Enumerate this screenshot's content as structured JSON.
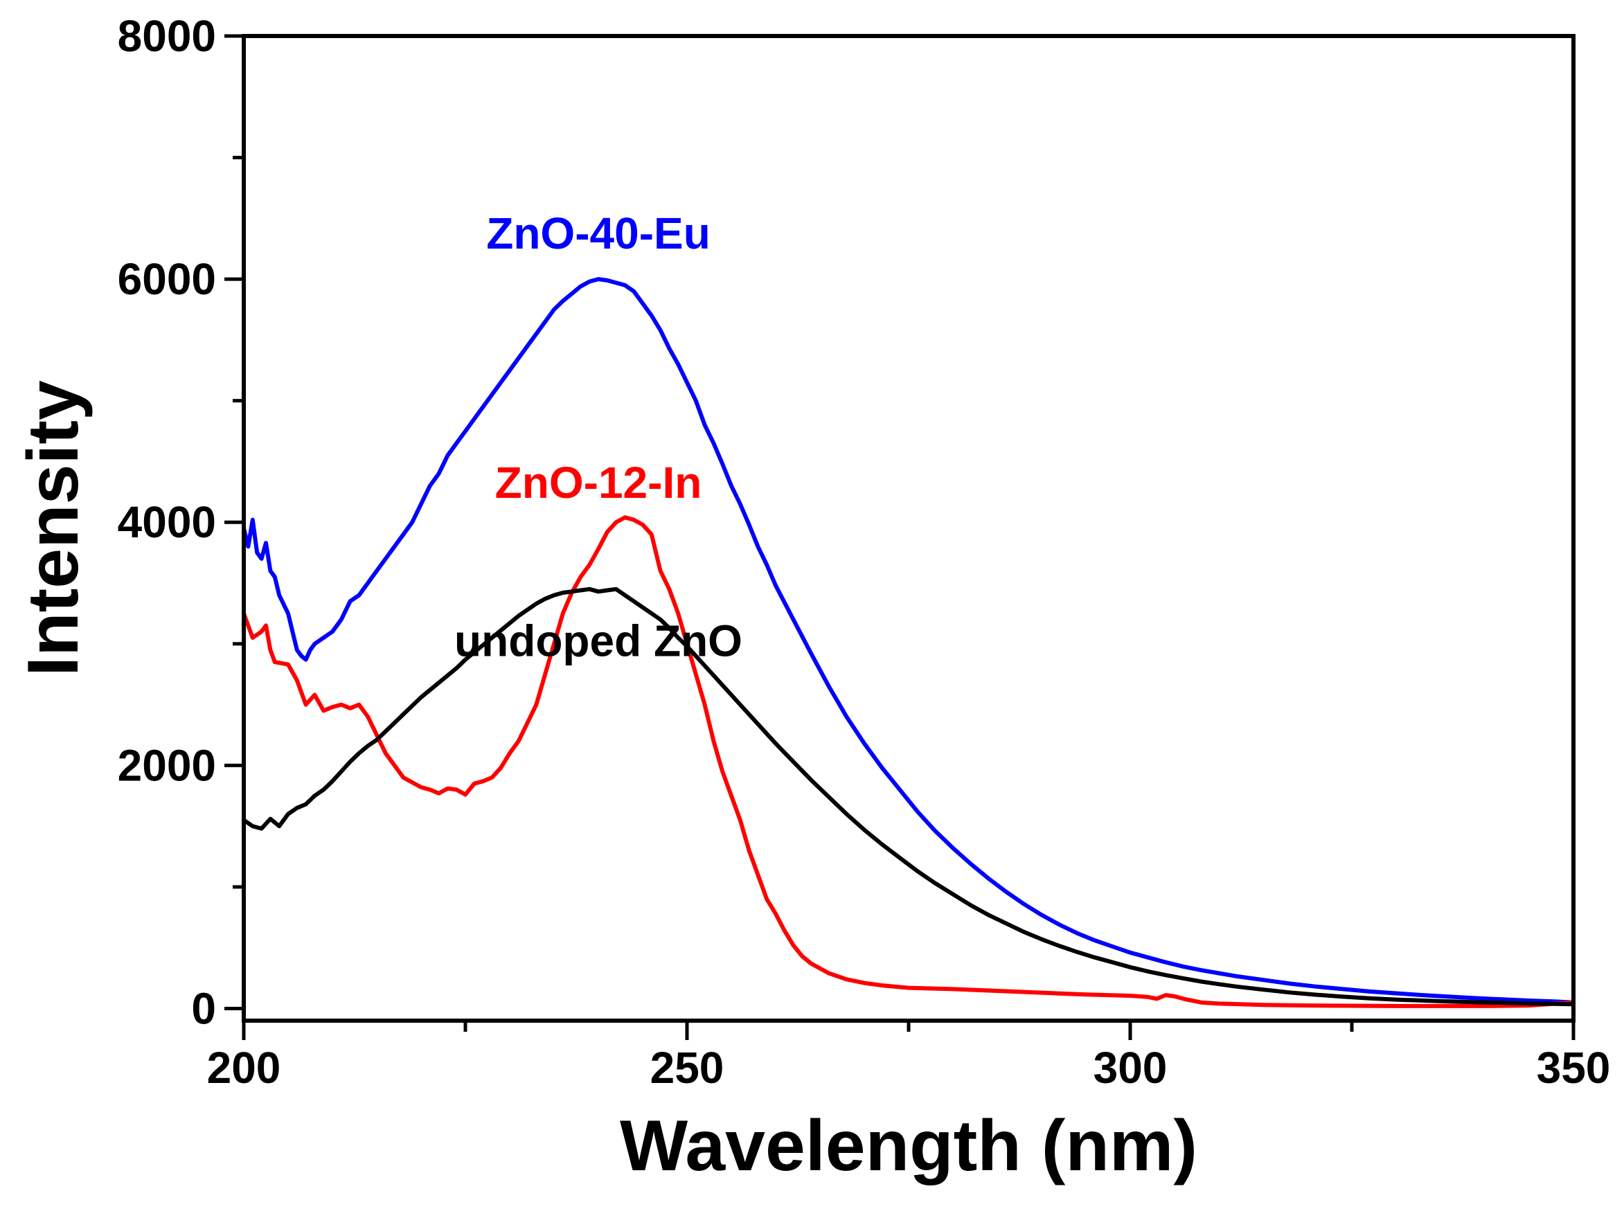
{
  "chart_data": {
    "type": "line",
    "title": "",
    "xlabel": "Wavelength (nm)",
    "ylabel": "Intensity",
    "xlim": [
      200,
      350
    ],
    "ylim": [
      -100,
      8000
    ],
    "xticks": [
      200,
      250,
      300,
      350
    ],
    "yticks": [
      0,
      2000,
      4000,
      6000,
      8000
    ],
    "x_minor_step": 25,
    "y_minor_step": 1000,
    "grid": false,
    "legend": "inline labels",
    "series": [
      {
        "name": "ZnO-40-Eu",
        "color": "#0000ff",
        "label_anchor": [
          240,
          6250
        ],
        "points": [
          [
            200,
            3950
          ],
          [
            200.5,
            3800
          ],
          [
            201,
            4020
          ],
          [
            201.5,
            3750
          ],
          [
            202,
            3700
          ],
          [
            202.5,
            3830
          ],
          [
            203,
            3600
          ],
          [
            203.5,
            3550
          ],
          [
            204,
            3400
          ],
          [
            205,
            3250
          ],
          [
            206,
            2950
          ],
          [
            206.5,
            2900
          ],
          [
            207,
            2870
          ],
          [
            207.5,
            2950
          ],
          [
            208,
            3000
          ],
          [
            209,
            3050
          ],
          [
            210,
            3100
          ],
          [
            211,
            3200
          ],
          [
            212,
            3350
          ],
          [
            213,
            3400
          ],
          [
            214,
            3500
          ],
          [
            215,
            3600
          ],
          [
            216,
            3700
          ],
          [
            217,
            3800
          ],
          [
            218,
            3900
          ],
          [
            219,
            4000
          ],
          [
            220,
            4150
          ],
          [
            221,
            4300
          ],
          [
            222,
            4400
          ],
          [
            223,
            4550
          ],
          [
            224,
            4650
          ],
          [
            225,
            4750
          ],
          [
            226,
            4850
          ],
          [
            227,
            4950
          ],
          [
            228,
            5050
          ],
          [
            229,
            5150
          ],
          [
            230,
            5250
          ],
          [
            231,
            5350
          ],
          [
            232,
            5450
          ],
          [
            233,
            5550
          ],
          [
            234,
            5650
          ],
          [
            235,
            5750
          ],
          [
            236,
            5820
          ],
          [
            237,
            5880
          ],
          [
            238,
            5940
          ],
          [
            239,
            5980
          ],
          [
            240,
            6000
          ],
          [
            241,
            5990
          ],
          [
            242,
            5970
          ],
          [
            243,
            5950
          ],
          [
            244,
            5900
          ],
          [
            245,
            5800
          ],
          [
            246,
            5700
          ],
          [
            247,
            5580
          ],
          [
            248,
            5430
          ],
          [
            249,
            5300
          ],
          [
            250,
            5150
          ],
          [
            251,
            5000
          ],
          [
            252,
            4800
          ],
          [
            253,
            4650
          ],
          [
            254,
            4480
          ],
          [
            255,
            4300
          ],
          [
            256,
            4150
          ],
          [
            257,
            3980
          ],
          [
            258,
            3800
          ],
          [
            259,
            3650
          ],
          [
            260,
            3480
          ],
          [
            262,
            3200
          ],
          [
            264,
            2920
          ],
          [
            266,
            2650
          ],
          [
            268,
            2400
          ],
          [
            270,
            2180
          ],
          [
            272,
            1980
          ],
          [
            274,
            1800
          ],
          [
            276,
            1620
          ],
          [
            278,
            1460
          ],
          [
            280,
            1320
          ],
          [
            282,
            1190
          ],
          [
            284,
            1070
          ],
          [
            286,
            960
          ],
          [
            288,
            860
          ],
          [
            290,
            770
          ],
          [
            292,
            690
          ],
          [
            294,
            620
          ],
          [
            296,
            560
          ],
          [
            298,
            510
          ],
          [
            300,
            460
          ],
          [
            302,
            420
          ],
          [
            304,
            380
          ],
          [
            306,
            345
          ],
          [
            308,
            315
          ],
          [
            310,
            290
          ],
          [
            312,
            265
          ],
          [
            315,
            235
          ],
          [
            318,
            205
          ],
          [
            321,
            180
          ],
          [
            324,
            160
          ],
          [
            327,
            140
          ],
          [
            330,
            125
          ],
          [
            333,
            110
          ],
          [
            336,
            97
          ],
          [
            339,
            85
          ],
          [
            342,
            75
          ],
          [
            345,
            65
          ],
          [
            348,
            57
          ],
          [
            350,
            50
          ]
        ]
      },
      {
        "name": "ZnO-12-In",
        "color": "#ff0000",
        "label_anchor": [
          240,
          4200
        ],
        "points": [
          [
            200,
            3250
          ],
          [
            200.5,
            3150
          ],
          [
            201,
            3050
          ],
          [
            202,
            3100
          ],
          [
            202.5,
            3150
          ],
          [
            203,
            2950
          ],
          [
            203.5,
            2850
          ],
          [
            205,
            2830
          ],
          [
            206,
            2700
          ],
          [
            207,
            2500
          ],
          [
            208,
            2580
          ],
          [
            209,
            2450
          ],
          [
            210,
            2480
          ],
          [
            211,
            2500
          ],
          [
            212,
            2470
          ],
          [
            213,
            2500
          ],
          [
            214,
            2400
          ],
          [
            215,
            2250
          ],
          [
            216,
            2100
          ],
          [
            217,
            2000
          ],
          [
            218,
            1900
          ],
          [
            219,
            1860
          ],
          [
            220,
            1820
          ],
          [
            221,
            1800
          ],
          [
            222,
            1770
          ],
          [
            223,
            1810
          ],
          [
            224,
            1800
          ],
          [
            225,
            1760
          ],
          [
            226,
            1850
          ],
          [
            227,
            1870
          ],
          [
            228,
            1900
          ],
          [
            229,
            1980
          ],
          [
            230,
            2100
          ],
          [
            231,
            2200
          ],
          [
            232,
            2350
          ],
          [
            233,
            2500
          ],
          [
            234,
            2750
          ],
          [
            235,
            3000
          ],
          [
            236,
            3250
          ],
          [
            237,
            3420
          ],
          [
            238,
            3550
          ],
          [
            239,
            3650
          ],
          [
            240,
            3780
          ],
          [
            241,
            3920
          ],
          [
            242,
            4000
          ],
          [
            243,
            4040
          ],
          [
            244,
            4020
          ],
          [
            245,
            3980
          ],
          [
            246,
            3900
          ],
          [
            247,
            3600
          ],
          [
            248,
            3450
          ],
          [
            249,
            3250
          ],
          [
            250,
            3000
          ],
          [
            251,
            2750
          ],
          [
            252,
            2500
          ],
          [
            253,
            2200
          ],
          [
            254,
            1950
          ],
          [
            255,
            1750
          ],
          [
            256,
            1550
          ],
          [
            257,
            1300
          ],
          [
            258,
            1100
          ],
          [
            259,
            900
          ],
          [
            260,
            780
          ],
          [
            261,
            640
          ],
          [
            262,
            520
          ],
          [
            263,
            430
          ],
          [
            264,
            370
          ],
          [
            266,
            290
          ],
          [
            268,
            240
          ],
          [
            270,
            210
          ],
          [
            272,
            190
          ],
          [
            275,
            170
          ],
          [
            280,
            160
          ],
          [
            285,
            145
          ],
          [
            290,
            130
          ],
          [
            295,
            115
          ],
          [
            300,
            105
          ],
          [
            302,
            95
          ],
          [
            303,
            80
          ],
          [
            304,
            110
          ],
          [
            305,
            100
          ],
          [
            306,
            80
          ],
          [
            308,
            50
          ],
          [
            310,
            40
          ],
          [
            315,
            30
          ],
          [
            320,
            25
          ],
          [
            330,
            20
          ],
          [
            340,
            20
          ],
          [
            345,
            25
          ],
          [
            348,
            40
          ],
          [
            350,
            50
          ]
        ]
      },
      {
        "name": "undoped ZnO",
        "color": "#000000",
        "label_anchor": [
          240,
          2900
        ],
        "points": [
          [
            200,
            1550
          ],
          [
            201,
            1500
          ],
          [
            202,
            1480
          ],
          [
            203,
            1560
          ],
          [
            204,
            1500
          ],
          [
            205,
            1600
          ],
          [
            206,
            1650
          ],
          [
            207,
            1680
          ],
          [
            208,
            1750
          ],
          [
            209,
            1800
          ],
          [
            210,
            1870
          ],
          [
            211,
            1950
          ],
          [
            212,
            2030
          ],
          [
            213,
            2100
          ],
          [
            214,
            2160
          ],
          [
            215,
            2210
          ],
          [
            216,
            2280
          ],
          [
            217,
            2350
          ],
          [
            218,
            2420
          ],
          [
            219,
            2490
          ],
          [
            220,
            2560
          ],
          [
            221,
            2620
          ],
          [
            222,
            2680
          ],
          [
            223,
            2740
          ],
          [
            224,
            2800
          ],
          [
            225,
            2870
          ],
          [
            226,
            2930
          ],
          [
            227,
            2990
          ],
          [
            228,
            3050
          ],
          [
            229,
            3110
          ],
          [
            230,
            3170
          ],
          [
            231,
            3230
          ],
          [
            232,
            3280
          ],
          [
            233,
            3330
          ],
          [
            234,
            3370
          ],
          [
            235,
            3400
          ],
          [
            236,
            3420
          ],
          [
            237,
            3430
          ],
          [
            238,
            3440
          ],
          [
            239,
            3450
          ],
          [
            240,
            3430
          ],
          [
            241,
            3440
          ],
          [
            242,
            3450
          ],
          [
            243,
            3400
          ],
          [
            244,
            3350
          ],
          [
            245,
            3300
          ],
          [
            246,
            3250
          ],
          [
            247,
            3200
          ],
          [
            248,
            3130
          ],
          [
            249,
            3050
          ],
          [
            250,
            2980
          ],
          [
            251,
            2900
          ],
          [
            252,
            2820
          ],
          [
            253,
            2740
          ],
          [
            254,
            2660
          ],
          [
            255,
            2580
          ],
          [
            256,
            2500
          ],
          [
            257,
            2420
          ],
          [
            258,
            2340
          ],
          [
            259,
            2260
          ],
          [
            260,
            2180
          ],
          [
            262,
            2030
          ],
          [
            264,
            1880
          ],
          [
            266,
            1740
          ],
          [
            268,
            1600
          ],
          [
            270,
            1470
          ],
          [
            272,
            1350
          ],
          [
            274,
            1240
          ],
          [
            276,
            1130
          ],
          [
            278,
            1030
          ],
          [
            280,
            940
          ],
          [
            282,
            850
          ],
          [
            284,
            770
          ],
          [
            286,
            700
          ],
          [
            288,
            630
          ],
          [
            290,
            570
          ],
          [
            292,
            515
          ],
          [
            294,
            465
          ],
          [
            296,
            420
          ],
          [
            298,
            380
          ],
          [
            300,
            340
          ],
          [
            302,
            305
          ],
          [
            304,
            275
          ],
          [
            306,
            248
          ],
          [
            308,
            222
          ],
          [
            310,
            200
          ],
          [
            312,
            180
          ],
          [
            315,
            155
          ],
          [
            318,
            132
          ],
          [
            321,
            113
          ],
          [
            324,
            97
          ],
          [
            327,
            84
          ],
          [
            330,
            73
          ],
          [
            335,
            60
          ],
          [
            340,
            50
          ],
          [
            345,
            42
          ],
          [
            350,
            35
          ]
        ]
      }
    ]
  }
}
